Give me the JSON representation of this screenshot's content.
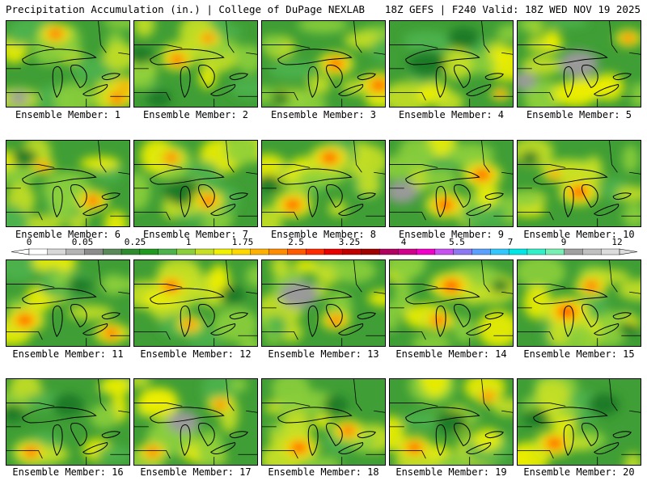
{
  "header": {
    "left": "Precipitation Accumulation (in.) | College of DuPage NEXLAB",
    "right": "18Z GEFS | F240 Valid: 18Z WED NOV 19 2025"
  },
  "panels": [
    {
      "label": "Ensemble Member: 1",
      "hot": [
        [
          0.4,
          0.15,
          0.5
        ],
        [
          0.95,
          0.8,
          0.6
        ],
        [
          0.9,
          0.9,
          0.5
        ]
      ],
      "cool": [
        [
          0.1,
          0.9,
          0.3
        ]
      ]
    },
    {
      "label": "Ensemble Member: 2",
      "hot": [
        [
          0.35,
          0.45,
          0.5
        ],
        [
          0.6,
          0.2,
          0.4
        ]
      ],
      "cool": [
        [
          0.05,
          0.4,
          0.4
        ],
        [
          0.2,
          0.9,
          0.4
        ]
      ]
    },
    {
      "label": "Ensemble Member: 3",
      "hot": [
        [
          0.6,
          0.5,
          0.55
        ],
        [
          0.95,
          0.75,
          0.6
        ]
      ],
      "cool": [
        [
          0.15,
          0.9,
          0.3
        ]
      ]
    },
    {
      "label": "Ensemble Member: 4",
      "hot": [
        [
          0.9,
          0.85,
          0.3
        ]
      ],
      "cool": [
        [
          0.3,
          0.5,
          0.6
        ],
        [
          0.6,
          0.2,
          0.5
        ]
      ]
    },
    {
      "label": "Ensemble Member: 5",
      "hot": [
        [
          0.9,
          0.2,
          0.4
        ]
      ],
      "cool": [
        [
          0.05,
          0.7,
          0.4
        ],
        [
          0.5,
          0.5,
          0.6
        ]
      ]
    },
    {
      "label": "Ensemble Member: 6",
      "hot": [
        [
          0.7,
          0.7,
          0.5
        ],
        [
          0.3,
          0.3,
          0.35
        ]
      ],
      "cool": [
        [
          0.15,
          0.2,
          0.4
        ]
      ]
    },
    {
      "label": "Ensemble Member: 7",
      "hot": [
        [
          0.3,
          0.2,
          0.45
        ],
        [
          0.6,
          0.7,
          0.5
        ]
      ],
      "cool": [
        [
          0.4,
          0.6,
          0.6
        ]
      ]
    },
    {
      "label": "Ensemble Member: 8",
      "hot": [
        [
          0.55,
          0.2,
          0.6
        ],
        [
          0.25,
          0.75,
          0.6
        ]
      ],
      "cool": [
        [
          0.05,
          0.5,
          0.4
        ]
      ]
    },
    {
      "label": "Ensemble Member: 9",
      "hot": [
        [
          0.45,
          0.75,
          0.6
        ],
        [
          0.75,
          0.4,
          0.6
        ]
      ],
      "cool": [
        [
          0.1,
          0.6,
          0.5
        ]
      ]
    },
    {
      "label": "Ensemble Member: 10",
      "hot": [
        [
          0.5,
          0.6,
          0.6
        ],
        [
          0.3,
          0.4,
          0.3
        ]
      ],
      "cool": [
        [
          0.1,
          0.2,
          0.3
        ]
      ]
    },
    {
      "label": "Ensemble Member: 11",
      "hot": [
        [
          0.15,
          0.7,
          0.6
        ],
        [
          0.85,
          0.85,
          0.5
        ]
      ],
      "cool": [
        [
          0.6,
          0.3,
          0.4
        ]
      ]
    },
    {
      "label": "Ensemble Member: 12",
      "hot": [
        [
          0.3,
          0.3,
          0.55
        ],
        [
          0.45,
          0.75,
          0.4
        ]
      ],
      "cool": [
        [
          0.8,
          0.4,
          0.4
        ]
      ]
    },
    {
      "label": "Ensemble Member: 13",
      "hot": [
        [
          0.6,
          0.7,
          0.45
        ]
      ],
      "cool": [
        [
          0.3,
          0.4,
          0.6
        ]
      ]
    },
    {
      "label": "Ensemble Member: 14",
      "hot": [
        [
          0.5,
          0.3,
          0.65
        ],
        [
          0.4,
          0.7,
          0.5
        ]
      ],
      "cool": [
        [
          0.9,
          0.3,
          0.3
        ]
      ]
    },
    {
      "label": "Ensemble Member: 15",
      "hot": [
        [
          0.4,
          0.6,
          0.7
        ],
        [
          0.6,
          0.3,
          0.5
        ]
      ],
      "cool": [
        [
          0.9,
          0.8,
          0.3
        ]
      ]
    },
    {
      "label": "Ensemble Member: 16",
      "hot": [
        [
          0.2,
          0.85,
          0.5
        ]
      ],
      "cool": [
        [
          0.05,
          0.4,
          0.4
        ],
        [
          0.5,
          0.3,
          0.5
        ]
      ]
    },
    {
      "label": "Ensemble Member: 17",
      "hot": [
        [
          0.15,
          0.85,
          0.45
        ],
        [
          0.7,
          0.3,
          0.4
        ]
      ],
      "cool": [
        [
          0.4,
          0.5,
          0.5
        ]
      ]
    },
    {
      "label": "Ensemble Member: 18",
      "hot": [
        [
          0.3,
          0.8,
          0.6
        ],
        [
          0.7,
          0.6,
          0.5
        ]
      ],
      "cool": [
        [
          0.6,
          0.3,
          0.4
        ]
      ]
    },
    {
      "label": "Ensemble Member: 19",
      "hot": [
        [
          0.2,
          0.8,
          0.55
        ],
        [
          0.8,
          0.2,
          0.4
        ]
      ],
      "cool": [
        [
          0.5,
          0.5,
          0.5
        ]
      ]
    },
    {
      "label": "Ensemble Member: 20",
      "hot": [
        [
          0.3,
          0.75,
          0.6
        ]
      ],
      "cool": [
        [
          0.15,
          0.45,
          0.4
        ],
        [
          0.7,
          0.3,
          0.5
        ]
      ]
    }
  ],
  "legend": {
    "tick_labels": [
      "0",
      "0.05",
      "0.25",
      "1",
      "1.75",
      "2.5",
      "3.25",
      "4",
      "5.5",
      "7",
      "9",
      "12"
    ],
    "colors": [
      "#ffffff",
      "#d8d8d8",
      "#b4b4b4",
      "#8c8c8c",
      "#5a8a5a",
      "#2e8b2e",
      "#1f9a1f",
      "#4cb24c",
      "#8ccf3c",
      "#c8e024",
      "#f0f000",
      "#ffd800",
      "#ffb000",
      "#ff8c00",
      "#ff5a00",
      "#ff2a00",
      "#e60000",
      "#c00000",
      "#a00000",
      "#b00060",
      "#d0008c",
      "#f000c8",
      "#c850f0",
      "#8c78f0",
      "#5aa0ff",
      "#32c8ff",
      "#00e6e6",
      "#32f0c8",
      "#78f0b4",
      "#a0a0a0",
      "#c0c0c0",
      "#dcdcdc"
    ]
  }
}
